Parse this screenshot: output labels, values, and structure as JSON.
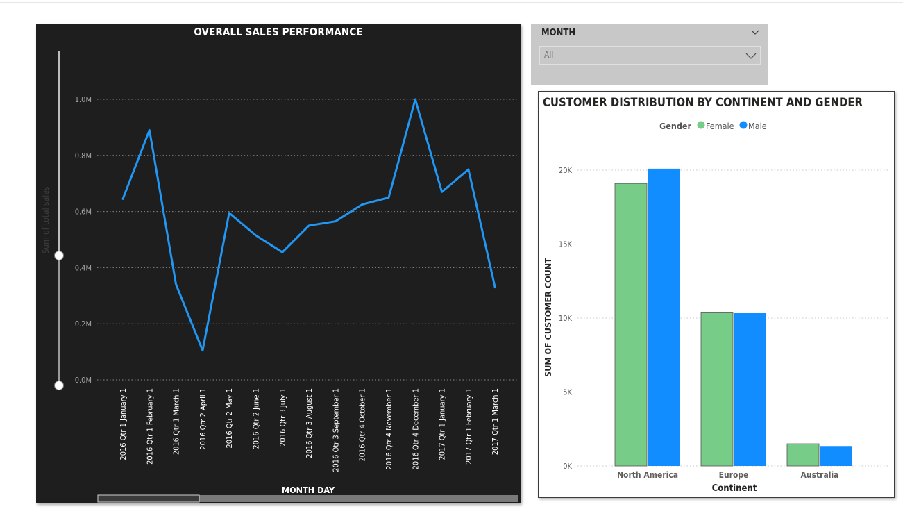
{
  "slicer": {
    "header": "MONTH",
    "value": "All"
  },
  "colors": {
    "sales_line": "#2196f3",
    "female": "#77cc88",
    "male": "#118dff",
    "panel_dark": "#1e1e1e"
  },
  "chart_data": [
    {
      "type": "line",
      "title": "OVERALL SALES PERFORMANCE",
      "xlabel": "MONTH DAY",
      "ylabel": "Sum of total sales",
      "ylim": [
        0,
        1000000
      ],
      "yticks": [
        "0.0M",
        "0.2M",
        "0.4M",
        "0.6M",
        "0.8M",
        "1.0M"
      ],
      "grid": true,
      "categories": [
        "2016 Qtr 1 January 1",
        "2016 Qtr 1 February 1",
        "2016 Qtr 1 March 1",
        "2016 Qtr 2 April 1",
        "2016 Qtr 2 May 1",
        "2016 Qtr 2 June 1",
        "2016 Qtr 3 July 1",
        "2016 Qtr 3 August 1",
        "2016 Qtr 3 September 1",
        "2016 Qtr 4 October 1",
        "2016 Qtr 4 November 1",
        "2016 Qtr 4 December 1",
        "2017 Qtr 1 January 1",
        "2017 Qtr 1 February 1",
        "2017 Qtr 1 March 1"
      ],
      "values": [
        645000,
        890000,
        340000,
        105000,
        595000,
        515000,
        455000,
        550000,
        565000,
        625000,
        650000,
        1000000,
        670000,
        750000,
        330000
      ]
    },
    {
      "type": "bar",
      "title": "CUSTOMER DISTRIBUTION BY CONTINENT AND GENDER",
      "xlabel": "Continent",
      "ylabel": "SUM OF CUSTOMER COUNT",
      "ylim": [
        0,
        20000
      ],
      "yticks": [
        "0K",
        "5K",
        "10K",
        "15K",
        "20K"
      ],
      "grid": true,
      "legend_title": "Gender",
      "legend_position": "top-center",
      "categories": [
        "North America",
        "Europe",
        "Australia"
      ],
      "series": [
        {
          "name": "Female",
          "values": [
            19100,
            10400,
            1500
          ]
        },
        {
          "name": "Male",
          "values": [
            20100,
            10350,
            1350
          ]
        }
      ]
    }
  ]
}
